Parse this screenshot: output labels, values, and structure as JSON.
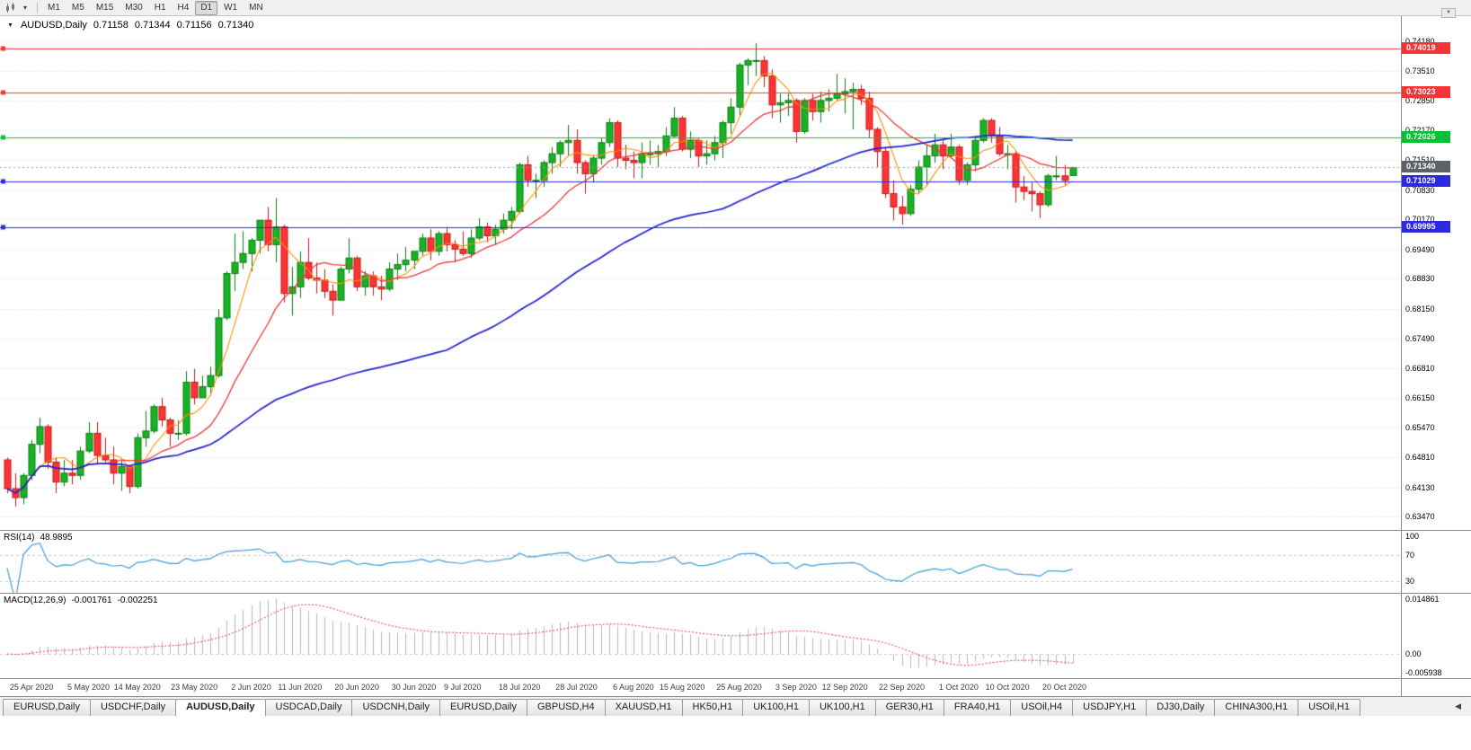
{
  "toolbar": {
    "chart_symbol_icon": "candlestick-chart",
    "dropdown_icon": "chevron-down",
    "timeframes": [
      "M1",
      "M5",
      "M15",
      "M30",
      "H1",
      "H4",
      "D1",
      "W1",
      "MN"
    ],
    "active_timeframe": "D1"
  },
  "chart_header": {
    "symbol": "AUDUSD,Daily",
    "open": "0.71158",
    "high": "0.71344",
    "low": "0.71156",
    "close": "0.71340"
  },
  "chart_data": {
    "type": "candlestick",
    "symbol": "AUDUSD",
    "timeframe": "D1",
    "y_axis_labels": [
      "0.74180",
      "0.73510",
      "0.72850",
      "0.72170",
      "0.71510",
      "0.70830",
      "0.70170",
      "0.69490",
      "0.68830",
      "0.68150",
      "0.67490",
      "0.66810",
      "0.66150",
      "0.65470",
      "0.64810",
      "0.64130",
      "0.63470"
    ],
    "y_range": [
      0.6317,
      0.7475
    ],
    "x_axis_labels": [
      "25 Apr 2020",
      "5 May 2020",
      "14 May 2020",
      "23 May 2020",
      "2 Jun 2020",
      "11 Jun 2020",
      "20 Jun 2020",
      "30 Jun 2020",
      "9 Jul 2020",
      "18 Jul 2020",
      "28 Jul 2020",
      "6 Aug 2020",
      "15 Aug 2020",
      "25 Aug 2020",
      "3 Sep 2020",
      "12 Sep 2020",
      "22 Sep 2020",
      "1 Oct 2020",
      "10 Oct 2020",
      "20 Oct 2020"
    ],
    "colors": {
      "up": "#17b324",
      "up_border": "#0d7a14",
      "down": "#fd3434",
      "down_border": "#c01818"
    },
    "moving_averages": [
      {
        "name": "ma-fast",
        "period": 5,
        "color": "#ff9100"
      },
      {
        "name": "ma-medium",
        "period": 13,
        "color": "#ef3535"
      },
      {
        "name": "ma-slow",
        "period": 55,
        "color": "#2222cf"
      }
    ],
    "horizontal_levels": [
      {
        "price": 0.74019,
        "label": "0.74019",
        "color": "#f63434"
      },
      {
        "price": 0.73023,
        "label": "0.73023",
        "color": "#f63434"
      },
      {
        "price": 0.72026,
        "label": "0.72026",
        "color": "#00c232"
      },
      {
        "price": 0.71029,
        "label": "0.71029",
        "color": "#2a2ae0"
      },
      {
        "price": 0.69995,
        "label": "0.69995",
        "color": "#2a2ae0"
      }
    ],
    "current_price": {
      "price": 0.7134,
      "label": "0.71340",
      "tag_color": "#5d6168",
      "line_color": "#9aa0a6"
    },
    "candles_ohlc": [
      [
        0.6475,
        0.648,
        0.64,
        0.641
      ],
      [
        0.641,
        0.6445,
        0.637,
        0.639
      ],
      [
        0.639,
        0.6445,
        0.6375,
        0.644
      ],
      [
        0.644,
        0.652,
        0.643,
        0.651
      ],
      [
        0.651,
        0.657,
        0.649,
        0.655
      ],
      [
        0.655,
        0.6555,
        0.6455,
        0.647
      ],
      [
        0.647,
        0.648,
        0.64,
        0.6425
      ],
      [
        0.6425,
        0.6475,
        0.6415,
        0.6445
      ],
      [
        0.6445,
        0.6475,
        0.642,
        0.644
      ],
      [
        0.644,
        0.6505,
        0.643,
        0.6495
      ],
      [
        0.6495,
        0.656,
        0.649,
        0.6535
      ],
      [
        0.6535,
        0.656,
        0.6465,
        0.6485
      ],
      [
        0.6485,
        0.6525,
        0.647,
        0.6475
      ],
      [
        0.6475,
        0.6505,
        0.642,
        0.6445
      ],
      [
        0.6445,
        0.6475,
        0.6405,
        0.646
      ],
      [
        0.646,
        0.646,
        0.64,
        0.6415
      ],
      [
        0.6415,
        0.6535,
        0.641,
        0.6525
      ],
      [
        0.6525,
        0.6585,
        0.6505,
        0.654
      ],
      [
        0.654,
        0.66,
        0.6535,
        0.6595
      ],
      [
        0.6595,
        0.6615,
        0.655,
        0.6565
      ],
      [
        0.6565,
        0.657,
        0.6505,
        0.6535
      ],
      [
        0.6535,
        0.6565,
        0.652,
        0.6535
      ],
      [
        0.6535,
        0.6675,
        0.653,
        0.665
      ],
      [
        0.665,
        0.668,
        0.66,
        0.6615
      ],
      [
        0.6615,
        0.6665,
        0.6615,
        0.664
      ],
      [
        0.664,
        0.6685,
        0.662,
        0.6665
      ],
      [
        0.6665,
        0.6815,
        0.666,
        0.6795
      ],
      [
        0.6795,
        0.69,
        0.679,
        0.6895
      ],
      [
        0.6895,
        0.6985,
        0.6855,
        0.692
      ],
      [
        0.692,
        0.699,
        0.6905,
        0.694
      ],
      [
        0.694,
        0.6975,
        0.69,
        0.697
      ],
      [
        0.697,
        0.7015,
        0.694,
        0.7015
      ],
      [
        0.7015,
        0.7045,
        0.6945,
        0.696
      ],
      [
        0.696,
        0.7065,
        0.692,
        0.7
      ],
      [
        0.7,
        0.7005,
        0.683,
        0.685
      ],
      [
        0.685,
        0.691,
        0.68,
        0.6865
      ],
      [
        0.6865,
        0.6945,
        0.684,
        0.692
      ],
      [
        0.692,
        0.6975,
        0.688,
        0.6885
      ],
      [
        0.6885,
        0.692,
        0.685,
        0.688
      ],
      [
        0.688,
        0.6905,
        0.684,
        0.6855
      ],
      [
        0.6855,
        0.687,
        0.68,
        0.6835
      ],
      [
        0.6835,
        0.691,
        0.6835,
        0.6905
      ],
      [
        0.6905,
        0.6975,
        0.6895,
        0.693
      ],
      [
        0.693,
        0.6935,
        0.6855,
        0.6865
      ],
      [
        0.6865,
        0.69,
        0.6845,
        0.689
      ],
      [
        0.689,
        0.69,
        0.6845,
        0.6865
      ],
      [
        0.6865,
        0.689,
        0.6835,
        0.686
      ],
      [
        0.686,
        0.692,
        0.6855,
        0.6905
      ],
      [
        0.6905,
        0.694,
        0.688,
        0.6915
      ],
      [
        0.6915,
        0.6955,
        0.69,
        0.6925
      ],
      [
        0.6925,
        0.6945,
        0.6905,
        0.6945
      ],
      [
        0.6945,
        0.6985,
        0.6935,
        0.6975
      ],
      [
        0.6975,
        0.6995,
        0.6925,
        0.6945
      ],
      [
        0.6945,
        0.699,
        0.6935,
        0.6985
      ],
      [
        0.6985,
        0.7,
        0.6945,
        0.696
      ],
      [
        0.696,
        0.697,
        0.692,
        0.695
      ],
      [
        0.695,
        0.699,
        0.6935,
        0.694
      ],
      [
        0.694,
        0.6995,
        0.693,
        0.6975
      ],
      [
        0.6975,
        0.702,
        0.697,
        0.7
      ],
      [
        0.7,
        0.701,
        0.6965,
        0.698
      ],
      [
        0.698,
        0.7005,
        0.696,
        0.6995
      ],
      [
        0.6995,
        0.703,
        0.6985,
        0.7015
      ],
      [
        0.7015,
        0.7045,
        0.6995,
        0.7035
      ],
      [
        0.7035,
        0.7145,
        0.703,
        0.714
      ],
      [
        0.714,
        0.716,
        0.709,
        0.7105
      ],
      [
        0.7105,
        0.712,
        0.7065,
        0.7105
      ],
      [
        0.7105,
        0.715,
        0.709,
        0.7145
      ],
      [
        0.7145,
        0.718,
        0.712,
        0.7165
      ],
      [
        0.7165,
        0.7195,
        0.7135,
        0.719
      ],
      [
        0.719,
        0.723,
        0.716,
        0.7195
      ],
      [
        0.7195,
        0.722,
        0.712,
        0.7145
      ],
      [
        0.7145,
        0.715,
        0.7075,
        0.712
      ],
      [
        0.712,
        0.716,
        0.71,
        0.7155
      ],
      [
        0.7155,
        0.72,
        0.714,
        0.719
      ],
      [
        0.719,
        0.7245,
        0.718,
        0.7235
      ],
      [
        0.7235,
        0.724,
        0.7135,
        0.7155
      ],
      [
        0.7155,
        0.7185,
        0.713,
        0.715
      ],
      [
        0.715,
        0.717,
        0.711,
        0.7145
      ],
      [
        0.7145,
        0.719,
        0.711,
        0.7165
      ],
      [
        0.7165,
        0.7195,
        0.714,
        0.7165
      ],
      [
        0.7165,
        0.7185,
        0.7135,
        0.717
      ],
      [
        0.717,
        0.7225,
        0.716,
        0.7205
      ],
      [
        0.7205,
        0.727,
        0.72,
        0.7245
      ],
      [
        0.7245,
        0.725,
        0.717,
        0.7175
      ],
      [
        0.7175,
        0.7215,
        0.7155,
        0.7195
      ],
      [
        0.7195,
        0.72,
        0.7135,
        0.716
      ],
      [
        0.716,
        0.7195,
        0.714,
        0.7165
      ],
      [
        0.7165,
        0.7205,
        0.715,
        0.719
      ],
      [
        0.719,
        0.724,
        0.7155,
        0.7235
      ],
      [
        0.7235,
        0.729,
        0.721,
        0.727
      ],
      [
        0.727,
        0.737,
        0.725,
        0.7365
      ],
      [
        0.7365,
        0.738,
        0.732,
        0.7375
      ],
      [
        0.7375,
        0.7414,
        0.734,
        0.7375
      ],
      [
        0.7375,
        0.7385,
        0.7315,
        0.734
      ],
      [
        0.734,
        0.7355,
        0.7245,
        0.7275
      ],
      [
        0.7275,
        0.73,
        0.7235,
        0.728
      ],
      [
        0.728,
        0.73,
        0.725,
        0.7285
      ],
      [
        0.7285,
        0.729,
        0.719,
        0.7215
      ],
      [
        0.7215,
        0.729,
        0.721,
        0.7285
      ],
      [
        0.7285,
        0.73,
        0.724,
        0.726
      ],
      [
        0.726,
        0.7305,
        0.7235,
        0.7285
      ],
      [
        0.7285,
        0.731,
        0.726,
        0.729
      ],
      [
        0.729,
        0.7345,
        0.7285,
        0.73
      ],
      [
        0.73,
        0.7335,
        0.7255,
        0.7305
      ],
      [
        0.7305,
        0.7325,
        0.722,
        0.731
      ],
      [
        0.731,
        0.732,
        0.7275,
        0.729
      ],
      [
        0.729,
        0.7305,
        0.72,
        0.722
      ],
      [
        0.722,
        0.7225,
        0.7135,
        0.717
      ],
      [
        0.717,
        0.718,
        0.7065,
        0.7075
      ],
      [
        0.7075,
        0.7105,
        0.7015,
        0.7045
      ],
      [
        0.7045,
        0.707,
        0.7005,
        0.703
      ],
      [
        0.703,
        0.7095,
        0.7025,
        0.7085
      ],
      [
        0.7085,
        0.715,
        0.7075,
        0.7135
      ],
      [
        0.7135,
        0.7185,
        0.7095,
        0.716
      ],
      [
        0.716,
        0.721,
        0.7145,
        0.7185
      ],
      [
        0.7185,
        0.7195,
        0.713,
        0.716
      ],
      [
        0.716,
        0.721,
        0.7155,
        0.718
      ],
      [
        0.718,
        0.7185,
        0.7095,
        0.7105
      ],
      [
        0.7105,
        0.7145,
        0.7095,
        0.714
      ],
      [
        0.714,
        0.72,
        0.7125,
        0.7195
      ],
      [
        0.7195,
        0.7245,
        0.719,
        0.724
      ],
      [
        0.724,
        0.7245,
        0.719,
        0.7205
      ],
      [
        0.7205,
        0.7225,
        0.716,
        0.7165
      ],
      [
        0.7165,
        0.7185,
        0.713,
        0.7165
      ],
      [
        0.7165,
        0.717,
        0.7055,
        0.709
      ],
      [
        0.709,
        0.7115,
        0.706,
        0.708
      ],
      [
        0.708,
        0.71,
        0.7035,
        0.7075
      ],
      [
        0.7075,
        0.708,
        0.702,
        0.705
      ],
      [
        0.705,
        0.712,
        0.7045,
        0.7115
      ],
      [
        0.7115,
        0.716,
        0.7105,
        0.7115
      ],
      [
        0.7115,
        0.714,
        0.7095,
        0.7105
      ],
      [
        0.71158,
        0.71344,
        0.71156,
        0.7134
      ]
    ]
  },
  "indicators": {
    "rsi": {
      "title": "RSI(14)",
      "value": "48.9895",
      "period": 14,
      "axis_labels": [
        "100",
        "70",
        "30"
      ],
      "levels": [
        70,
        30
      ],
      "line_color": "#3f9bd8"
    },
    "macd": {
      "title": "MACD(12,26,9)",
      "main_value": "-0.001761",
      "signal_value": "-0.002251",
      "fast": 12,
      "slow": 26,
      "signal": 9,
      "axis_labels": [
        "0.014861",
        "0.00",
        "-0.005938"
      ],
      "axis_max": 0.014861,
      "axis_min": -0.005938,
      "histogram_color": "#b9b9b9",
      "signal_color": "#ef3535"
    }
  },
  "tab_bar": {
    "tabs": [
      "EURUSD,Daily",
      "USDCHF,Daily",
      "AUDUSD,Daily",
      "USDCAD,Daily",
      "USDCNH,Daily",
      "EURUSD,Daily",
      "GBPUSD,H4",
      "XAUUSD,H1",
      "HK50,H1",
      "UK100,H1",
      "UK100,H1",
      "GER30,H1",
      "FRA40,H1",
      "USOil,H4",
      "USDJPY,H1",
      "DJ30,Daily",
      "CHINA300,H1",
      "USOil,H1"
    ],
    "active_tab_index": 2,
    "scroll_left_icon": "triangle-left"
  }
}
